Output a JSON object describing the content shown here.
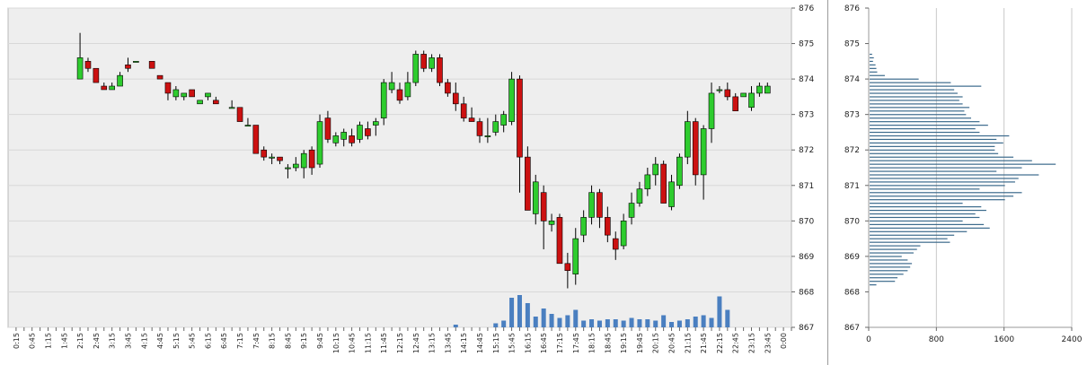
{
  "chart_data": [
    {
      "type": "candlestick",
      "y_range": [
        867,
        876
      ],
      "y_ticks": [
        "876",
        "875",
        "874",
        "873",
        "872",
        "871",
        "870",
        "869",
        "868",
        "867"
      ],
      "x_ticks": [
        "0:15",
        "0:45",
        "1:15",
        "1:45",
        "2:15",
        "2:45",
        "3:15",
        "3:45",
        "4:15",
        "4:45",
        "5:15",
        "5:45",
        "6:15",
        "6:45",
        "7:15",
        "7:45",
        "8:15",
        "8:45",
        "9:15",
        "9:45",
        "10:15",
        "10:45",
        "11:15",
        "11:45",
        "12:15",
        "12:45",
        "13:15",
        "13:45",
        "14:15",
        "14:45",
        "15:15",
        "15:45",
        "16:15",
        "16:45",
        "17:15",
        "17:45",
        "18:15",
        "18:45",
        "19:15",
        "19:45",
        "20:15",
        "20:45",
        "21:15",
        "21:45",
        "22:15",
        "22:45",
        "23:15",
        "23:45",
        "0:00"
      ],
      "grid": true,
      "colors": {
        "up": "#2ecc2e",
        "down": "#cc1111",
        "volume": "#4a7fc0",
        "plot_bg": "#eeeeee",
        "grid": "#d8d8d8"
      },
      "candles": [
        {
          "t": "2:15",
          "o": 874.0,
          "h": 875.3,
          "l": 874.0,
          "c": 874.6
        },
        {
          "t": "2:30",
          "o": 874.5,
          "h": 874.6,
          "l": 874.2,
          "c": 874.3
        },
        {
          "t": "2:45",
          "o": 874.3,
          "h": 874.3,
          "l": 873.9,
          "c": 873.9
        },
        {
          "t": "3:00",
          "o": 873.8,
          "h": 873.9,
          "l": 873.7,
          "c": 873.7
        },
        {
          "t": "3:15",
          "o": 873.7,
          "h": 873.9,
          "l": 873.7,
          "c": 873.8
        },
        {
          "t": "3:30",
          "o": 873.8,
          "h": 874.2,
          "l": 873.8,
          "c": 874.1
        },
        {
          "t": "3:45",
          "o": 874.4,
          "h": 874.6,
          "l": 874.2,
          "c": 874.3
        },
        {
          "t": "4:00",
          "o": 874.5,
          "h": 874.5,
          "l": 874.5,
          "c": 874.5
        },
        {
          "t": "4:30",
          "o": 874.5,
          "h": 874.5,
          "l": 874.3,
          "c": 874.3
        },
        {
          "t": "4:45",
          "o": 874.1,
          "h": 874.1,
          "l": 874.0,
          "c": 874.0
        },
        {
          "t": "5:00",
          "o": 873.9,
          "h": 873.9,
          "l": 873.4,
          "c": 873.6
        },
        {
          "t": "5:15",
          "o": 873.5,
          "h": 873.8,
          "l": 873.4,
          "c": 873.7
        },
        {
          "t": "5:30",
          "o": 873.5,
          "h": 873.6,
          "l": 873.4,
          "c": 873.6
        },
        {
          "t": "5:45",
          "o": 873.7,
          "h": 873.7,
          "l": 873.5,
          "c": 873.5
        },
        {
          "t": "6:00",
          "o": 873.3,
          "h": 873.4,
          "l": 873.3,
          "c": 873.4
        },
        {
          "t": "6:15",
          "o": 873.5,
          "h": 873.6,
          "l": 873.4,
          "c": 873.6
        },
        {
          "t": "6:30",
          "o": 873.4,
          "h": 873.5,
          "l": 873.3,
          "c": 873.3
        },
        {
          "t": "7:00",
          "o": 873.2,
          "h": 873.4,
          "l": 873.2,
          "c": 873.2
        },
        {
          "t": "7:15",
          "o": 873.2,
          "h": 873.2,
          "l": 872.8,
          "c": 872.8
        },
        {
          "t": "7:30",
          "o": 872.7,
          "h": 872.9,
          "l": 872.7,
          "c": 872.7
        },
        {
          "t": "7:45",
          "o": 872.7,
          "h": 872.7,
          "l": 871.9,
          "c": 871.9
        },
        {
          "t": "8:00",
          "o": 872.0,
          "h": 872.1,
          "l": 871.7,
          "c": 871.8
        },
        {
          "t": "8:15",
          "o": 871.8,
          "h": 871.9,
          "l": 871.6,
          "c": 871.8
        },
        {
          "t": "8:30",
          "o": 871.8,
          "h": 871.8,
          "l": 871.6,
          "c": 871.7
        },
        {
          "t": "8:45",
          "o": 871.5,
          "h": 871.6,
          "l": 871.2,
          "c": 871.5
        },
        {
          "t": "9:00",
          "o": 871.5,
          "h": 871.8,
          "l": 871.4,
          "c": 871.6
        },
        {
          "t": "9:15",
          "o": 871.5,
          "h": 872.0,
          "l": 871.2,
          "c": 871.9
        },
        {
          "t": "9:30",
          "o": 872.0,
          "h": 872.1,
          "l": 871.3,
          "c": 871.5
        },
        {
          "t": "9:45",
          "o": 871.6,
          "h": 873.0,
          "l": 871.5,
          "c": 872.8
        },
        {
          "t": "10:00",
          "o": 872.9,
          "h": 873.1,
          "l": 872.2,
          "c": 872.3
        },
        {
          "t": "10:15",
          "o": 872.2,
          "h": 872.5,
          "l": 872.1,
          "c": 872.4
        },
        {
          "t": "10:30",
          "o": 872.3,
          "h": 872.6,
          "l": 872.1,
          "c": 872.5
        },
        {
          "t": "10:45",
          "o": 872.4,
          "h": 872.6,
          "l": 872.1,
          "c": 872.2
        },
        {
          "t": "11:00",
          "o": 872.3,
          "h": 872.8,
          "l": 872.2,
          "c": 872.7
        },
        {
          "t": "11:15",
          "o": 872.6,
          "h": 872.8,
          "l": 872.3,
          "c": 872.4
        },
        {
          "t": "11:30",
          "o": 872.7,
          "h": 872.9,
          "l": 872.4,
          "c": 872.8
        },
        {
          "t": "11:45",
          "o": 872.9,
          "h": 874.0,
          "l": 872.7,
          "c": 873.9
        },
        {
          "t": "12:00",
          "o": 873.7,
          "h": 874.2,
          "l": 873.6,
          "c": 873.9
        },
        {
          "t": "12:15",
          "o": 873.7,
          "h": 873.9,
          "l": 873.3,
          "c": 873.4
        },
        {
          "t": "12:30",
          "o": 873.5,
          "h": 874.2,
          "l": 873.4,
          "c": 873.9
        },
        {
          "t": "12:45",
          "o": 873.9,
          "h": 874.8,
          "l": 873.8,
          "c": 874.7
        },
        {
          "t": "13:00",
          "o": 874.7,
          "h": 874.8,
          "l": 874.2,
          "c": 874.3
        },
        {
          "t": "13:15",
          "o": 874.3,
          "h": 874.7,
          "l": 874.2,
          "c": 874.6
        },
        {
          "t": "13:30",
          "o": 874.6,
          "h": 874.7,
          "l": 873.8,
          "c": 873.9
        },
        {
          "t": "13:45",
          "o": 873.9,
          "h": 874.0,
          "l": 873.5,
          "c": 873.6
        },
        {
          "t": "14:00",
          "o": 873.6,
          "h": 873.9,
          "l": 873.1,
          "c": 873.3
        },
        {
          "t": "14:15",
          "o": 873.3,
          "h": 873.5,
          "l": 872.8,
          "c": 872.9
        },
        {
          "t": "14:30",
          "o": 872.9,
          "h": 873.2,
          "l": 872.8,
          "c": 872.8
        },
        {
          "t": "14:45",
          "o": 872.8,
          "h": 872.9,
          "l": 872.2,
          "c": 872.4
        },
        {
          "t": "15:00",
          "o": 872.4,
          "h": 872.9,
          "l": 872.2,
          "c": 872.4
        },
        {
          "t": "15:15",
          "o": 872.5,
          "h": 873.0,
          "l": 872.4,
          "c": 872.8
        },
        {
          "t": "15:30",
          "o": 872.7,
          "h": 873.1,
          "l": 872.5,
          "c": 873.0
        },
        {
          "t": "15:45",
          "o": 872.8,
          "h": 874.2,
          "l": 872.7,
          "c": 874.0
        },
        {
          "t": "16:00",
          "o": 874.0,
          "h": 874.1,
          "l": 870.8,
          "c": 871.8
        },
        {
          "t": "16:15",
          "o": 871.8,
          "h": 872.1,
          "l": 870.3,
          "c": 870.3
        },
        {
          "t": "16:30",
          "o": 870.2,
          "h": 871.3,
          "l": 869.9,
          "c": 871.1
        },
        {
          "t": "16:45",
          "o": 870.8,
          "h": 871.0,
          "l": 869.2,
          "c": 870.0
        },
        {
          "t": "17:00",
          "o": 869.9,
          "h": 870.2,
          "l": 869.7,
          "c": 870.0
        },
        {
          "t": "17:15",
          "o": 870.1,
          "h": 870.2,
          "l": 868.8,
          "c": 868.8
        },
        {
          "t": "17:30",
          "o": 868.8,
          "h": 869.1,
          "l": 868.1,
          "c": 868.6
        },
        {
          "t": "17:45",
          "o": 868.5,
          "h": 869.8,
          "l": 868.2,
          "c": 869.5
        },
        {
          "t": "18:00",
          "o": 869.6,
          "h": 870.3,
          "l": 869.4,
          "c": 870.1
        },
        {
          "t": "18:15",
          "o": 870.1,
          "h": 871.0,
          "l": 869.9,
          "c": 870.8
        },
        {
          "t": "18:30",
          "o": 870.8,
          "h": 870.9,
          "l": 869.8,
          "c": 870.1
        },
        {
          "t": "18:45",
          "o": 870.1,
          "h": 870.4,
          "l": 869.4,
          "c": 869.6
        },
        {
          "t": "19:00",
          "o": 869.5,
          "h": 869.7,
          "l": 868.9,
          "c": 869.2
        },
        {
          "t": "19:15",
          "o": 869.3,
          "h": 870.2,
          "l": 869.2,
          "c": 870.0
        },
        {
          "t": "19:30",
          "o": 870.1,
          "h": 870.8,
          "l": 869.9,
          "c": 870.5
        },
        {
          "t": "19:45",
          "o": 870.5,
          "h": 871.1,
          "l": 870.4,
          "c": 870.9
        },
        {
          "t": "20:00",
          "o": 870.9,
          "h": 871.5,
          "l": 870.7,
          "c": 871.3
        },
        {
          "t": "20:15",
          "o": 871.3,
          "h": 871.8,
          "l": 871.0,
          "c": 871.6
        },
        {
          "t": "20:30",
          "o": 871.6,
          "h": 871.7,
          "l": 870.5,
          "c": 870.5
        },
        {
          "t": "20:45",
          "o": 870.4,
          "h": 871.3,
          "l": 870.3,
          "c": 871.1
        },
        {
          "t": "21:00",
          "o": 871.0,
          "h": 871.9,
          "l": 870.9,
          "c": 871.8
        },
        {
          "t": "21:15",
          "o": 871.8,
          "h": 873.1,
          "l": 871.6,
          "c": 872.8
        },
        {
          "t": "21:30",
          "o": 872.8,
          "h": 872.9,
          "l": 871.0,
          "c": 871.3
        },
        {
          "t": "21:45",
          "o": 871.3,
          "h": 872.7,
          "l": 870.6,
          "c": 872.6
        },
        {
          "t": "22:00",
          "o": 872.6,
          "h": 873.9,
          "l": 872.2,
          "c": 873.6
        },
        {
          "t": "22:15",
          "o": 873.7,
          "h": 873.8,
          "l": 873.6,
          "c": 873.7
        },
        {
          "t": "22:30",
          "o": 873.7,
          "h": 873.9,
          "l": 873.4,
          "c": 873.5
        },
        {
          "t": "22:45",
          "o": 873.5,
          "h": 873.6,
          "l": 873.1,
          "c": 873.1
        },
        {
          "t": "23:00",
          "o": 873.5,
          "h": 873.6,
          "l": 873.5,
          "c": 873.6
        },
        {
          "t": "23:15",
          "o": 873.2,
          "h": 873.8,
          "l": 873.1,
          "c": 873.6
        },
        {
          "t": "23:30",
          "o": 873.6,
          "h": 873.9,
          "l": 873.5,
          "c": 873.8
        },
        {
          "t": "23:45",
          "o": 873.6,
          "h": 873.9,
          "l": 873.6,
          "c": 873.8
        }
      ],
      "volume": [
        {
          "t": "14:00",
          "v": 2
        },
        {
          "t": "15:15",
          "v": 3
        },
        {
          "t": "15:30",
          "v": 5
        },
        {
          "t": "15:45",
          "v": 22
        },
        {
          "t": "16:00",
          "v": 24
        },
        {
          "t": "16:15",
          "v": 18
        },
        {
          "t": "16:30",
          "v": 8
        },
        {
          "t": "16:45",
          "v": 14
        },
        {
          "t": "17:00",
          "v": 10
        },
        {
          "t": "17:15",
          "v": 7
        },
        {
          "t": "17:30",
          "v": 9
        },
        {
          "t": "17:45",
          "v": 13
        },
        {
          "t": "18:00",
          "v": 5
        },
        {
          "t": "18:15",
          "v": 6
        },
        {
          "t": "18:30",
          "v": 5
        },
        {
          "t": "18:45",
          "v": 6
        },
        {
          "t": "19:00",
          "v": 6
        },
        {
          "t": "19:15",
          "v": 5
        },
        {
          "t": "19:30",
          "v": 7
        },
        {
          "t": "19:45",
          "v": 6
        },
        {
          "t": "20:00",
          "v": 6
        },
        {
          "t": "20:15",
          "v": 5
        },
        {
          "t": "20:30",
          "v": 9
        },
        {
          "t": "20:45",
          "v": 4
        },
        {
          "t": "21:00",
          "v": 5
        },
        {
          "t": "21:15",
          "v": 6
        },
        {
          "t": "21:30",
          "v": 8
        },
        {
          "t": "21:45",
          "v": 9
        },
        {
          "t": "22:00",
          "v": 7
        },
        {
          "t": "22:15",
          "v": 23
        },
        {
          "t": "22:30",
          "v": 13
        }
      ]
    },
    {
      "type": "bar",
      "orientation": "horizontal",
      "y_range": [
        867,
        876
      ],
      "y_ticks": [
        "876",
        "875",
        "874",
        "873",
        "872",
        "871",
        "870",
        "869",
        "868",
        "867"
      ],
      "x_range": [
        0,
        2400
      ],
      "x_ticks": [
        "0",
        "800",
        "1600",
        "2400"
      ],
      "grid": true,
      "color": "#3b6a8c",
      "bins": [
        {
          "price": 868.2,
          "v": 80
        },
        {
          "price": 868.3,
          "v": 300
        },
        {
          "price": 868.4,
          "v": 330
        },
        {
          "price": 868.5,
          "v": 400
        },
        {
          "price": 868.6,
          "v": 450
        },
        {
          "price": 868.7,
          "v": 480
        },
        {
          "price": 868.8,
          "v": 500
        },
        {
          "price": 868.9,
          "v": 450
        },
        {
          "price": 869.0,
          "v": 380
        },
        {
          "price": 869.1,
          "v": 520
        },
        {
          "price": 869.2,
          "v": 560
        },
        {
          "price": 869.3,
          "v": 600
        },
        {
          "price": 869.4,
          "v": 950
        },
        {
          "price": 869.5,
          "v": 920
        },
        {
          "price": 869.6,
          "v": 1000
        },
        {
          "price": 869.7,
          "v": 1150
        },
        {
          "price": 869.8,
          "v": 1420
        },
        {
          "price": 869.9,
          "v": 1350
        },
        {
          "price": 870.0,
          "v": 1100
        },
        {
          "price": 870.1,
          "v": 1300
        },
        {
          "price": 870.2,
          "v": 1250
        },
        {
          "price": 870.3,
          "v": 1380
        },
        {
          "price": 870.4,
          "v": 1320
        },
        {
          "price": 870.5,
          "v": 1100
        },
        {
          "price": 870.6,
          "v": 1600
        },
        {
          "price": 870.7,
          "v": 1700
        },
        {
          "price": 870.8,
          "v": 1800
        },
        {
          "price": 870.9,
          "v": 1300
        },
        {
          "price": 871.0,
          "v": 1600
        },
        {
          "price": 871.1,
          "v": 1720
        },
        {
          "price": 871.2,
          "v": 1760
        },
        {
          "price": 871.3,
          "v": 2000
        },
        {
          "price": 871.4,
          "v": 1500
        },
        {
          "price": 871.5,
          "v": 1800
        },
        {
          "price": 871.6,
          "v": 2200
        },
        {
          "price": 871.7,
          "v": 1920
        },
        {
          "price": 871.8,
          "v": 1700
        },
        {
          "price": 871.9,
          "v": 1520
        },
        {
          "price": 872.0,
          "v": 1480
        },
        {
          "price": 872.1,
          "v": 1480
        },
        {
          "price": 872.2,
          "v": 1580
        },
        {
          "price": 872.3,
          "v": 1500
        },
        {
          "price": 872.4,
          "v": 1650
        },
        {
          "price": 872.5,
          "v": 1300
        },
        {
          "price": 872.6,
          "v": 1250
        },
        {
          "price": 872.7,
          "v": 1400
        },
        {
          "price": 872.8,
          "v": 1300
        },
        {
          "price": 872.9,
          "v": 1200
        },
        {
          "price": 873.0,
          "v": 1140
        },
        {
          "price": 873.1,
          "v": 1120
        },
        {
          "price": 873.2,
          "v": 1180
        },
        {
          "price": 873.3,
          "v": 1100
        },
        {
          "price": 873.4,
          "v": 1060
        },
        {
          "price": 873.5,
          "v": 1100
        },
        {
          "price": 873.6,
          "v": 1040
        },
        {
          "price": 873.7,
          "v": 1000
        },
        {
          "price": 873.8,
          "v": 1320
        },
        {
          "price": 873.9,
          "v": 960
        },
        {
          "price": 874.0,
          "v": 580
        },
        {
          "price": 874.1,
          "v": 180
        },
        {
          "price": 874.2,
          "v": 90
        },
        {
          "price": 874.3,
          "v": 80
        },
        {
          "price": 874.4,
          "v": 70
        },
        {
          "price": 874.5,
          "v": 40
        },
        {
          "price": 874.6,
          "v": 50
        },
        {
          "price": 874.7,
          "v": 30
        }
      ]
    }
  ]
}
